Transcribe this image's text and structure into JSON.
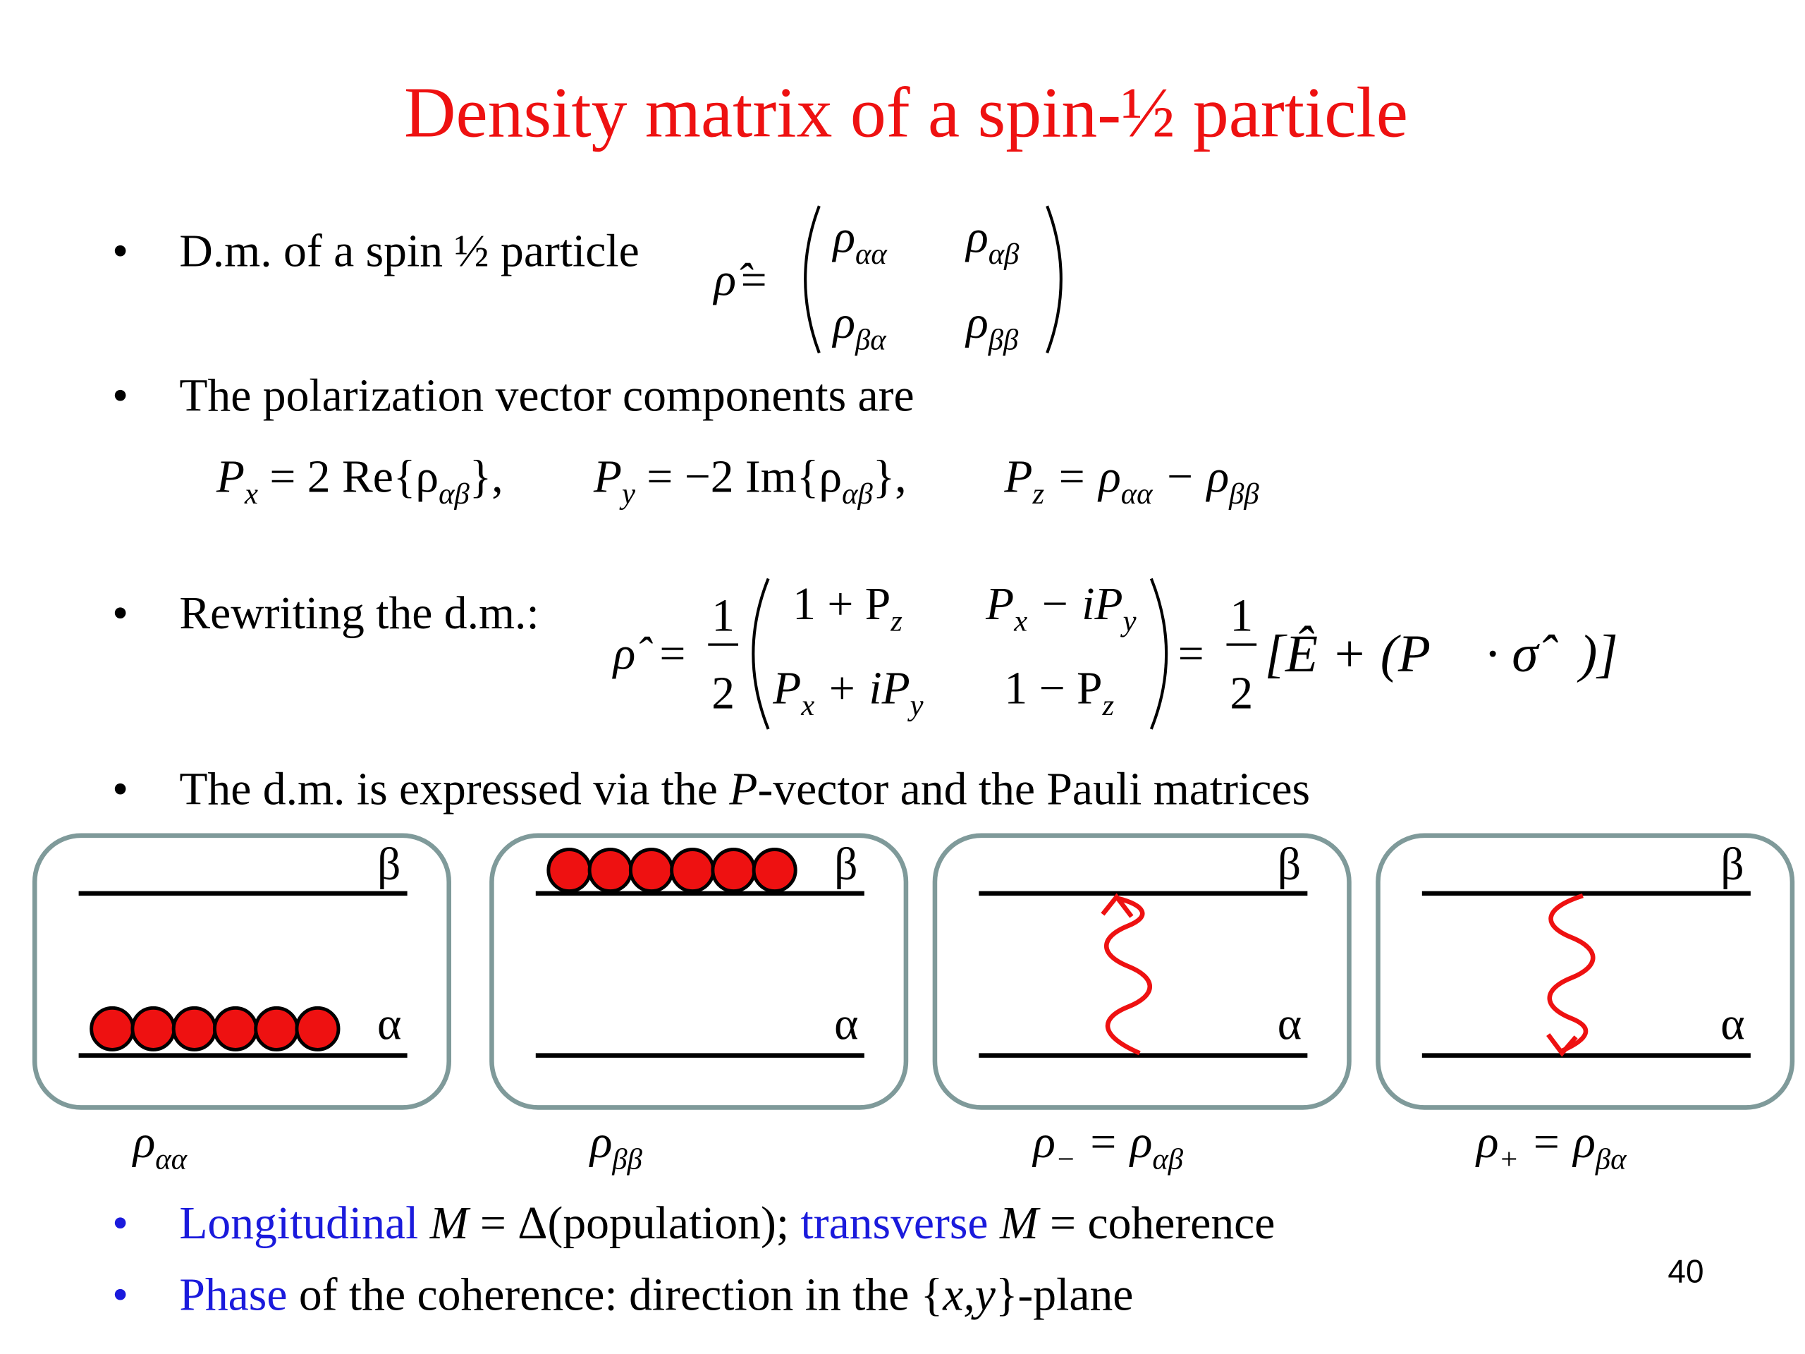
{
  "title": "Density matrix of a spin-½ particle",
  "bullets": [
    {
      "text": "D.m. of a spin ½ particle",
      "formula": [
        "ρ̂",
        "=",
        "ρ",
        "αα",
        "ρ",
        "αβ",
        "ρ",
        "βα",
        "ρ",
        "ββ"
      ]
    },
    {
      "text": "The polarization vector components are",
      "formula": [
        "P",
        "x",
        "= 2 Re{ρ",
        "αβ",
        "},",
        "P",
        "y",
        "= −2 Im{ρ",
        "αβ",
        "},",
        "P",
        "z",
        "= ρ",
        "αα",
        " − ρ",
        "ββ"
      ]
    },
    {
      "text": "Rewriting the d.m.:",
      "formula": [
        "ρ̂",
        "=",
        "1",
        "2",
        "1 + P",
        "z",
        "P",
        "x",
        " − iP",
        "y",
        "P",
        "x",
        " + iP",
        "y",
        "1 − P",
        "z",
        "=",
        "1",
        "2",
        "[Ê + (P⃗ · σ̂⃗)]"
      ]
    },
    {
      "text": [
        "The d.m. is expressed via the ",
        "P",
        "-vector and the Pauli matrices"
      ]
    }
  ],
  "diagrams": [
    {
      "upper": "β",
      "lower": "α",
      "caption": [
        "ρ",
        "αα"
      ]
    },
    {
      "upper": "β",
      "lower": "α",
      "caption": [
        "ρ",
        "ββ"
      ]
    },
    {
      "upper": "β",
      "lower": "α",
      "caption": [
        "ρ",
        "−",
        " = ρ",
        "αβ"
      ]
    },
    {
      "upper": "β",
      "lower": "α",
      "caption": [
        "ρ",
        "+",
        " = ρ",
        "βα"
      ]
    }
  ],
  "notes": [
    [
      "Longitudinal",
      " M",
      " = Δ(population); ",
      "transverse",
      " M",
      " = coherence"
    ],
    [
      "Phase",
      " of the coherence: direction in the {",
      "x,y",
      "}-plane"
    ]
  ],
  "page_number": "40"
}
